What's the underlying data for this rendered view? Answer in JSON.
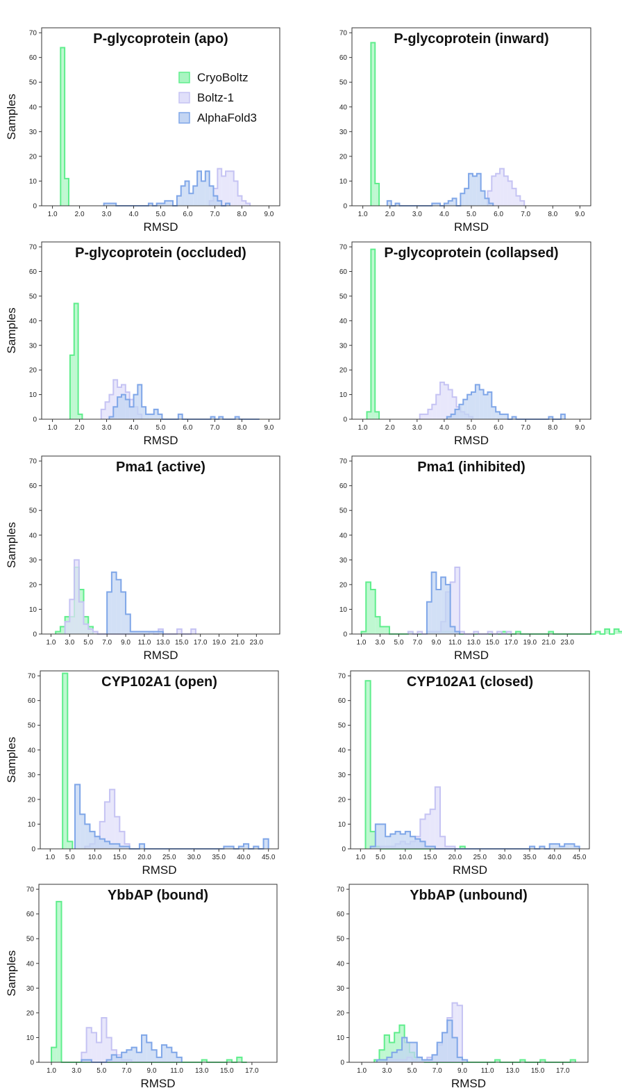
{
  "legend_entries": [
    {
      "label": "CryoBoltz",
      "color": "#6ef29a"
    },
    {
      "label": "Boltz-1",
      "color": "#c3c2f2"
    },
    {
      "label": "AlphaFold3",
      "color": "#93b4ec"
    }
  ],
  "colors": {
    "CryoBoltz": {
      "fill": "#a9f5c1",
      "stroke": "#5fee8c"
    },
    "Boltz-1": {
      "fill": "#e0dffa",
      "stroke": "#c5c3f3"
    },
    "AlphaFold3": {
      "fill": "#c3d5f3",
      "stroke": "#7fa6e8"
    }
  },
  "chart_data": [
    {
      "type": "histogram",
      "title": "P-glycoprotein (apo)",
      "xlabel": "RMSD",
      "ylabel": "Samples",
      "xlim": [
        0.6,
        9.4
      ],
      "ylim": [
        0,
        72
      ],
      "xticks": [
        "1.0",
        "2.0",
        "3.0",
        "4.0",
        "5.0",
        "6.0",
        "7.0",
        "8.0",
        "9.0"
      ],
      "yticks": [
        0,
        10,
        20,
        30,
        40,
        50,
        60,
        70
      ],
      "legend": "upper-right",
      "series": [
        {
          "name": "CryoBoltz",
          "bin_start": 1.3,
          "bin_width": 0.15,
          "counts": [
            64,
            11
          ]
        },
        {
          "name": "Boltz-1",
          "bin_start": 6.8,
          "bin_width": 0.15,
          "counts": [
            2,
            7,
            15,
            12,
            14,
            14,
            10,
            4,
            2,
            1
          ]
        },
        {
          "name": "AlphaFold3",
          "bin_start": 2.9,
          "bin_width": 0.15,
          "counts": [
            1,
            1,
            1,
            0,
            0,
            0,
            0,
            0,
            0,
            0,
            0,
            1,
            0,
            1,
            1,
            2,
            2,
            0,
            4,
            8,
            10,
            5,
            8,
            14,
            10,
            14,
            8,
            4,
            2,
            0,
            1
          ]
        }
      ]
    },
    {
      "type": "histogram",
      "title": "P-glycoprotein (inward)",
      "xlabel": "RMSD",
      "ylabel": "Samples",
      "xlim": [
        0.6,
        9.4
      ],
      "ylim": [
        0,
        72
      ],
      "xticks": [
        "1.0",
        "2.0",
        "3.0",
        "4.0",
        "5.0",
        "6.0",
        "7.0",
        "8.0",
        "9.0"
      ],
      "yticks": [
        0,
        10,
        20,
        30,
        40,
        50,
        60,
        70
      ],
      "series": [
        {
          "name": "CryoBoltz",
          "bin_start": 1.3,
          "bin_width": 0.15,
          "counts": [
            66,
            9
          ]
        },
        {
          "name": "Boltz-1",
          "bin_start": 5.6,
          "bin_width": 0.15,
          "counts": [
            6,
            12,
            13,
            15,
            12,
            10,
            7,
            4,
            2
          ]
        },
        {
          "name": "AlphaFold3",
          "bin_start": 1.9,
          "bin_width": 0.15,
          "counts": [
            2,
            0,
            1,
            0,
            0,
            0,
            0,
            0,
            0,
            0,
            0,
            1,
            1,
            0,
            1,
            2,
            3,
            0,
            5,
            7,
            13,
            12,
            13,
            6,
            3,
            1
          ]
        }
      ]
    },
    {
      "type": "histogram",
      "title": "P-glycoprotein (occluded)",
      "xlabel": "RMSD",
      "ylabel": "Samples",
      "xlim": [
        0.6,
        9.4
      ],
      "ylim": [
        0,
        72
      ],
      "xticks": [
        "1.0",
        "2.0",
        "3.0",
        "4.0",
        "5.0",
        "6.0",
        "7.0",
        "8.0",
        "9.0"
      ],
      "yticks": [
        0,
        10,
        20,
        30,
        40,
        50,
        60,
        70
      ],
      "series": [
        {
          "name": "CryoBoltz",
          "bin_start": 1.65,
          "bin_width": 0.15,
          "counts": [
            26,
            47,
            2
          ]
        },
        {
          "name": "Boltz-1",
          "bin_start": 2.8,
          "bin_width": 0.15,
          "counts": [
            4,
            7,
            10,
            16,
            13,
            14,
            11,
            8,
            5,
            2
          ]
        },
        {
          "name": "AlphaFold3",
          "bin_start": 3.1,
          "bin_width": 0.15,
          "counts": [
            1,
            5,
            9,
            10,
            8,
            5,
            10,
            14,
            5,
            2,
            2,
            4,
            2,
            0,
            0,
            0,
            0,
            2,
            0,
            0,
            0,
            0,
            0,
            0,
            0,
            1,
            0,
            1,
            0,
            0,
            0,
            1,
            0,
            0,
            0,
            0,
            0
          ]
        }
      ]
    },
    {
      "type": "histogram",
      "title": "P-glycoprotein (collapsed)",
      "xlabel": "RMSD",
      "ylabel": "Samples",
      "xlim": [
        0.6,
        9.4
      ],
      "ylim": [
        0,
        72
      ],
      "xticks": [
        "1.0",
        "2.0",
        "3.0",
        "4.0",
        "5.0",
        "6.0",
        "7.0",
        "8.0",
        "9.0"
      ],
      "yticks": [
        0,
        10,
        20,
        30,
        40,
        50,
        60,
        70
      ],
      "series": [
        {
          "name": "CryoBoltz",
          "bin_start": 1.15,
          "bin_width": 0.15,
          "counts": [
            3,
            69,
            3
          ]
        },
        {
          "name": "Boltz-1",
          "bin_start": 3.1,
          "bin_width": 0.15,
          "counts": [
            2,
            2,
            4,
            6,
            10,
            15,
            14,
            12,
            9,
            5,
            3,
            2,
            1
          ]
        },
        {
          "name": "AlphaFold3",
          "bin_start": 4.1,
          "bin_width": 0.15,
          "counts": [
            1,
            2,
            4,
            6,
            8,
            10,
            11,
            14,
            12,
            10,
            11,
            5,
            3,
            2,
            2,
            0,
            1,
            0,
            0,
            0,
            0,
            0,
            0,
            0,
            0,
            1,
            0,
            0,
            2
          ]
        }
      ]
    },
    {
      "type": "histogram",
      "title": "Pma1 (active)",
      "xlabel": "RMSD",
      "ylabel": "Samples",
      "xlim": [
        0,
        25.5
      ],
      "ylim": [
        0,
        72
      ],
      "xticks": [
        "1.0",
        "3.0",
        "5.0",
        "7.0",
        "9.0",
        "11.0",
        "13.0",
        "15.0",
        "17.0",
        "19.0",
        "21.0",
        "23.0"
      ],
      "yticks": [
        0,
        10,
        20,
        30,
        40,
        50,
        60,
        70
      ],
      "series": [
        {
          "name": "CryoBoltz",
          "bin_start": 1.5,
          "bin_width": 0.5,
          "counts": [
            1,
            3,
            7,
            7,
            27,
            18,
            7,
            3
          ]
        },
        {
          "name": "Boltz-1",
          "bin_start": 2.5,
          "bin_width": 0.5,
          "counts": [
            5,
            14,
            30,
            13,
            4,
            2,
            1,
            0,
            0,
            0,
            0,
            0,
            0,
            0,
            0,
            0,
            0,
            0,
            1,
            0,
            2,
            0,
            0,
            0,
            2,
            0,
            0,
            2
          ]
        },
        {
          "name": "AlphaFold3",
          "bin_start": 7.0,
          "bin_width": 0.5,
          "counts": [
            17,
            25,
            22,
            17,
            8,
            1,
            1,
            1,
            1,
            1,
            1,
            1
          ]
        }
      ]
    },
    {
      "type": "histogram",
      "title": "Pma1 (inhibited)",
      "xlabel": "RMSD",
      "ylabel": "Samples",
      "xlim": [
        0,
        25.5
      ],
      "ylim": [
        0,
        72
      ],
      "xticks": [
        "1.0",
        "3.0",
        "5.0",
        "7.0",
        "9.0",
        "11.0",
        "13.0",
        "15.0",
        "17.0",
        "19.0",
        "21.0",
        "23.0"
      ],
      "yticks": [
        0,
        10,
        20,
        30,
        40,
        50,
        60,
        70
      ],
      "series": [
        {
          "name": "CryoBoltz",
          "bin_start": 1.0,
          "bin_width": 0.5,
          "counts": [
            1,
            21,
            18,
            7,
            3,
            3,
            0,
            0,
            0,
            0,
            1,
            0,
            0,
            0,
            1,
            1,
            1,
            1,
            1,
            1,
            1,
            0,
            0,
            0,
            0,
            0,
            0,
            0,
            0,
            0,
            1,
            0,
            0,
            1,
            0,
            0,
            0,
            0,
            0,
            0,
            1,
            0,
            0,
            0,
            0,
            0,
            0,
            0,
            0,
            0,
            1,
            0,
            2,
            0,
            2,
            1,
            2,
            2,
            0
          ]
        },
        {
          "name": "Boltz-1",
          "bin_start": 6.0,
          "bin_width": 0.5,
          "counts": [
            1,
            0,
            1,
            0,
            1,
            1,
            1,
            5,
            17,
            21,
            27,
            1,
            0,
            0,
            1,
            0,
            0,
            1,
            0,
            1,
            0,
            1
          ]
        },
        {
          "name": "AlphaFold3",
          "bin_start": 8.0,
          "bin_width": 0.5,
          "counts": [
            13,
            25,
            18,
            23,
            20,
            3,
            1
          ]
        }
      ]
    },
    {
      "type": "histogram",
      "title": "CYP102A1 (open)",
      "xlabel": "RMSD",
      "ylabel": "Samples",
      "xlim": [
        -1.0,
        47.0
      ],
      "ylim": [
        0,
        72
      ],
      "xticks": [
        "1.0",
        "5.0",
        "10.0",
        "15.0",
        "20.0",
        "25.0",
        "30.0",
        "35.0",
        "40.0",
        "45.0"
      ],
      "yticks": [
        0,
        10,
        20,
        30,
        40,
        50,
        60,
        70
      ],
      "series": [
        {
          "name": "CryoBoltz",
          "bin_start": 3.5,
          "bin_width": 1.0,
          "counts": [
            71,
            3
          ]
        },
        {
          "name": "Boltz-1",
          "bin_start": 8.0,
          "bin_width": 1.0,
          "counts": [
            1,
            2,
            5,
            11,
            19,
            24,
            13,
            7,
            2
          ]
        },
        {
          "name": "AlphaFold3",
          "bin_start": 6.0,
          "bin_width": 1.0,
          "counts": [
            26,
            14,
            10,
            7,
            5,
            4,
            3,
            2,
            2,
            1,
            1,
            0,
            0,
            2,
            0,
            0,
            0,
            0,
            0,
            0,
            0,
            0,
            0,
            0,
            0,
            0,
            0,
            0,
            0,
            0,
            1,
            1,
            0,
            1,
            2,
            0,
            1,
            0,
            4
          ]
        }
      ]
    },
    {
      "type": "histogram",
      "title": "CYP102A1 (closed)",
      "xlabel": "RMSD",
      "ylabel": "Samples",
      "xlim": [
        -1.0,
        47.0
      ],
      "ylim": [
        0,
        72
      ],
      "xticks": [
        "1.0",
        "5.0",
        "10.0",
        "15.0",
        "20.0",
        "25.0",
        "30.0",
        "35.0",
        "40.0",
        "45.0"
      ],
      "yticks": [
        0,
        10,
        20,
        30,
        40,
        50,
        60,
        70
      ],
      "series": [
        {
          "name": "CryoBoltz",
          "bin_start": 2.0,
          "bin_width": 1.0,
          "counts": [
            68,
            7,
            1,
            0,
            0,
            0,
            0,
            0,
            0,
            0,
            0,
            0,
            0,
            0,
            0,
            0,
            0,
            0,
            0,
            1
          ]
        },
        {
          "name": "Boltz-1",
          "bin_start": 5.0,
          "bin_width": 1.0,
          "counts": [
            1,
            1,
            1,
            2,
            3,
            2,
            3,
            5,
            12,
            14,
            16,
            25,
            5,
            1,
            1
          ]
        },
        {
          "name": "AlphaFold3",
          "bin_start": 3.0,
          "bin_width": 1.0,
          "counts": [
            1,
            10,
            10,
            5,
            6,
            7,
            6,
            7,
            5,
            4,
            3,
            1,
            1,
            0,
            0,
            0,
            0,
            0,
            0,
            0,
            0,
            0,
            0,
            0,
            0,
            0,
            0,
            0,
            0,
            0,
            0,
            0,
            1,
            0,
            1,
            0,
            2,
            2,
            1,
            2,
            2,
            1
          ]
        }
      ]
    },
    {
      "type": "histogram",
      "title": "YbbAP (bound)",
      "xlabel": "RMSD",
      "ylabel": "Samples",
      "xlim": [
        0,
        19.0
      ],
      "ylim": [
        0,
        72
      ],
      "xticks": [
        "1.0",
        "3.0",
        "5.0",
        "7.0",
        "9.0",
        "11.0",
        "13.0",
        "15.0",
        "17.0"
      ],
      "yticks": [
        0,
        10,
        20,
        30,
        40,
        50,
        60,
        70
      ],
      "series": [
        {
          "name": "CryoBoltz",
          "bin_start": 1.0,
          "bin_width": 0.4,
          "counts": [
            6,
            65,
            0,
            0,
            0,
            0,
            0,
            0,
            0,
            0,
            0,
            0,
            0,
            0,
            0,
            0,
            0,
            0,
            0,
            0,
            0,
            0,
            0,
            0,
            0,
            0,
            0,
            0,
            0,
            0,
            1,
            0,
            0,
            0,
            0,
            1,
            0,
            2,
            0
          ]
        },
        {
          "name": "Boltz-1",
          "bin_start": 3.4,
          "bin_width": 0.4,
          "counts": [
            4,
            14,
            12,
            8,
            18,
            10,
            5,
            3,
            1,
            1
          ]
        },
        {
          "name": "AlphaFold3",
          "bin_start": 3.4,
          "bin_width": 0.4,
          "counts": [
            1,
            1,
            0,
            0,
            0,
            1,
            3,
            2,
            4,
            5,
            6,
            4,
            11,
            8,
            5,
            2,
            7,
            6,
            4,
            2
          ]
        }
      ]
    },
    {
      "type": "histogram",
      "title": "YbbAP (unbound)",
      "xlabel": "RMSD",
      "ylabel": "Samples",
      "xlim": [
        0,
        19.0
      ],
      "ylim": [
        0,
        72
      ],
      "xticks": [
        "1.0",
        "3.0",
        "5.0",
        "7.0",
        "9.0",
        "11.0",
        "13.0",
        "15.0",
        "17.0"
      ],
      "yticks": [
        0,
        10,
        20,
        30,
        40,
        50,
        60,
        70
      ],
      "series": [
        {
          "name": "CryoBoltz",
          "bin_start": 2.0,
          "bin_width": 0.4,
          "counts": [
            1,
            5,
            11,
            8,
            12,
            15,
            8,
            4,
            2,
            1,
            0,
            0,
            0,
            0,
            0,
            0,
            0,
            0,
            0,
            0,
            0,
            0,
            0,
            0,
            1,
            0,
            0,
            0,
            0,
            1,
            0,
            0,
            0,
            1,
            0,
            0,
            0,
            0,
            0,
            1
          ]
        },
        {
          "name": "Boltz-1",
          "bin_start": 3.0,
          "bin_width": 0.4,
          "counts": [
            1,
            1,
            1,
            1,
            2,
            1,
            2,
            1,
            2,
            3,
            7,
            12,
            18,
            24,
            23
          ]
        },
        {
          "name": "AlphaFold3",
          "bin_start": 2.2,
          "bin_width": 0.4,
          "counts": [
            1,
            1,
            2,
            4,
            5,
            10,
            8,
            8,
            2,
            1,
            1,
            3,
            8,
            12,
            17,
            10,
            2,
            1
          ]
        }
      ]
    }
  ]
}
